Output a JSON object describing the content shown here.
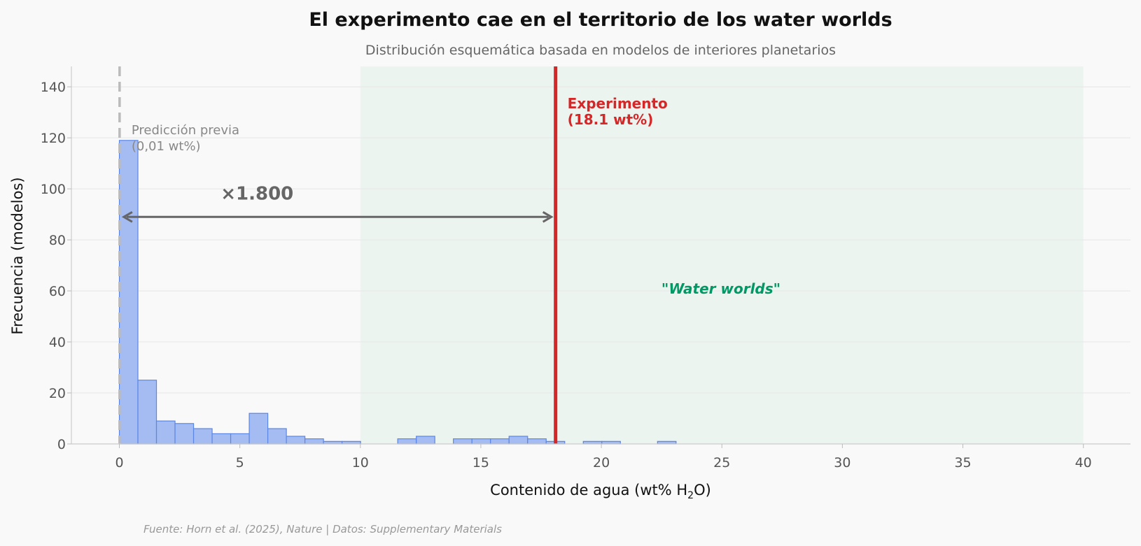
{
  "chart_data": {
    "type": "bar",
    "title": "El experimento cae en el territorio de los water worlds",
    "subtitle": "Distribución esquemática basada en modelos de interiores planetarios",
    "xlabel_main": "Contenido de agua (wt% H",
    "xlabel_sub": "2",
    "xlabel_end": "O)",
    "ylabel": "Frecuencia (modelos)",
    "xlim": [
      -2,
      42
    ],
    "ylim": [
      0,
      148
    ],
    "x_ticks": [
      0,
      5,
      10,
      15,
      20,
      25,
      30,
      35,
      40
    ],
    "y_ticks": [
      0,
      20,
      40,
      60,
      80,
      100,
      120,
      140
    ],
    "bin_width": 0.77,
    "bins": [
      {
        "x0": 0.0,
        "count": 119
      },
      {
        "x0": 0.77,
        "count": 25
      },
      {
        "x0": 1.54,
        "count": 9
      },
      {
        "x0": 2.31,
        "count": 8
      },
      {
        "x0": 3.08,
        "count": 6
      },
      {
        "x0": 3.85,
        "count": 4
      },
      {
        "x0": 4.62,
        "count": 4
      },
      {
        "x0": 5.39,
        "count": 12
      },
      {
        "x0": 6.16,
        "count": 6
      },
      {
        "x0": 6.93,
        "count": 3
      },
      {
        "x0": 7.7,
        "count": 2
      },
      {
        "x0": 8.47,
        "count": 1
      },
      {
        "x0": 9.24,
        "count": 1
      },
      {
        "x0": 11.55,
        "count": 2
      },
      {
        "x0": 12.32,
        "count": 3
      },
      {
        "x0": 13.86,
        "count": 2
      },
      {
        "x0": 14.63,
        "count": 2
      },
      {
        "x0": 15.4,
        "count": 2
      },
      {
        "x0": 16.17,
        "count": 3
      },
      {
        "x0": 16.94,
        "count": 2
      },
      {
        "x0": 17.71,
        "count": 1
      },
      {
        "x0": 19.25,
        "count": 1
      },
      {
        "x0": 20.02,
        "count": 1
      },
      {
        "x0": 22.33,
        "count": 1
      }
    ],
    "previous_prediction": {
      "x": 0.01,
      "label_line1": "Predicción previa",
      "label_line2": "(0,01 wt%)"
    },
    "experiment": {
      "x": 18.1,
      "label_line1": "Experimento",
      "label_line2": "(18.1 wt%)"
    },
    "multiplier": {
      "label": "×1.800",
      "y": 89
    },
    "water_worlds_region": {
      "x0": 10,
      "x1": 40,
      "label": "\"Water worlds\""
    },
    "source": "Fuente: Horn et al. (2025), Nature | Datos: Supplementary Materials",
    "colors": {
      "bar_fill": "#a4bcf2",
      "bar_stroke": "#5b86e5",
      "experiment": "#d62728",
      "previous": "#bbbbbb",
      "region": "#eaf3ef",
      "arrow": "#666666",
      "region_text": "#009966"
    }
  }
}
